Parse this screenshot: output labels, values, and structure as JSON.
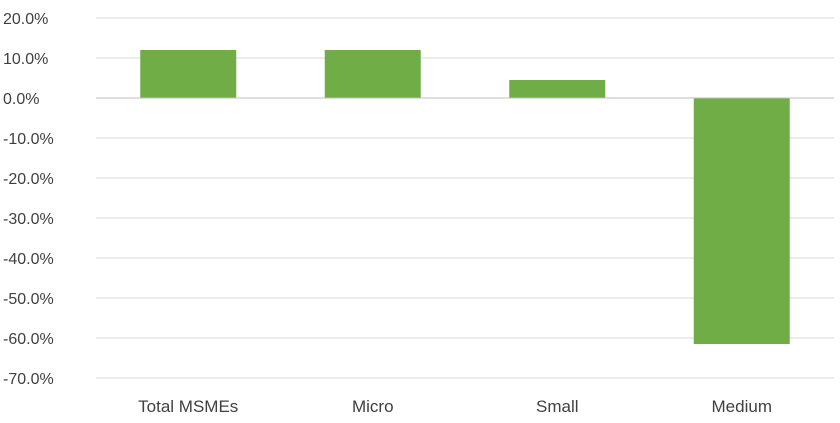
{
  "chart_data": {
    "type": "bar",
    "categories": [
      "Total MSMEs",
      "Micro",
      "Small",
      "Medium"
    ],
    "values": [
      12.0,
      12.0,
      4.5,
      -61.5
    ],
    "ylim": [
      -70,
      20
    ],
    "yticks": [
      20,
      10,
      0,
      -10,
      -20,
      -30,
      -40,
      -50,
      -60,
      -70
    ],
    "ytick_labels": [
      "20.0%",
      "10.0%",
      "0.0%",
      "-10.0%",
      "-20.0%",
      "-30.0%",
      "-40.0%",
      "-50.0%",
      "-60.0%",
      "-70.0%"
    ],
    "title": "",
    "xlabel": "",
    "ylabel": "",
    "grid": true,
    "legend": "none",
    "bar_color": "#70AD47",
    "gridline_color": "#D9D9D9",
    "tick_label_color": "#404040"
  }
}
